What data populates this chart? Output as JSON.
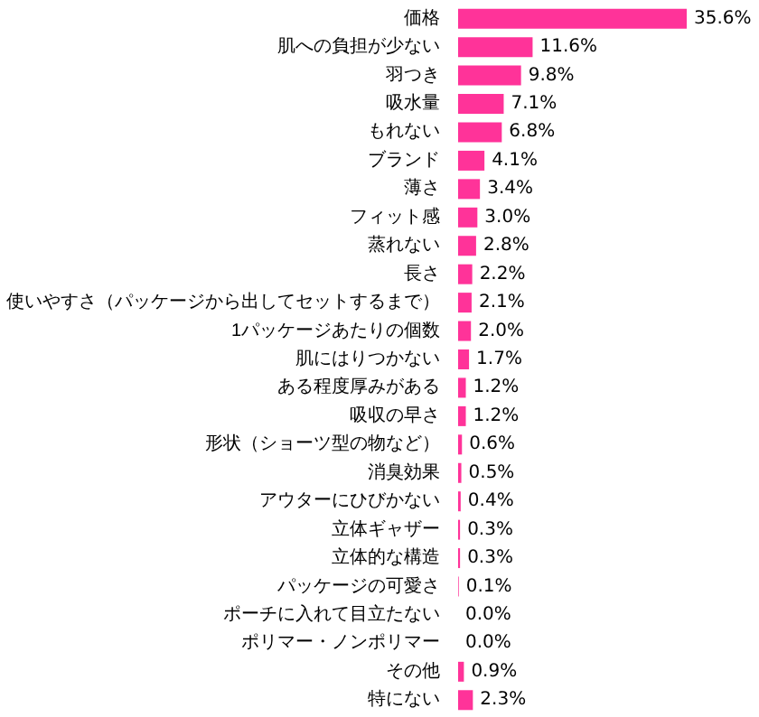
{
  "chart_data": {
    "type": "bar",
    "orientation": "horizontal",
    "color": "#ff3399",
    "categories": [
      "価格",
      "肌への負担が少ない",
      "羽つき",
      "吸水量",
      "もれない",
      "ブランド",
      "薄さ",
      "フィット感",
      "蒸れない",
      "長さ",
      "使いやすさ（パッケージから出してセットするまで）",
      "1パッケージあたりの個数",
      "肌にはりつかない",
      "ある程度厚みがある",
      "吸収の早さ",
      "形状（ショーツ型の物など）",
      "消臭効果",
      "アウターにひびかない",
      "立体ギャザー",
      "立体的な構造",
      "パッケージの可愛さ",
      "ポーチに入れて目立たない",
      "ポリマー・ノンポリマー",
      "その他",
      "特にない"
    ],
    "values": [
      35.6,
      11.6,
      9.8,
      7.1,
      6.8,
      4.1,
      3.4,
      3.0,
      2.8,
      2.2,
      2.1,
      2.0,
      1.7,
      1.2,
      1.2,
      0.6,
      0.5,
      0.4,
      0.3,
      0.3,
      0.1,
      0.0,
      0.0,
      0.9,
      2.3
    ],
    "value_labels": [
      "35.6%",
      "11.6%",
      "9.8%",
      "7.1%",
      "6.8%",
      "4.1%",
      "3.4%",
      "3.0%",
      "2.8%",
      "2.2%",
      "2.1%",
      "2.0%",
      "1.7%",
      "1.2%",
      "1.2%",
      "0.6%",
      "0.5%",
      "0.4%",
      "0.3%",
      "0.3%",
      "0.1%",
      "0.0%",
      "0.0%",
      "0.9%",
      "2.3%"
    ]
  }
}
